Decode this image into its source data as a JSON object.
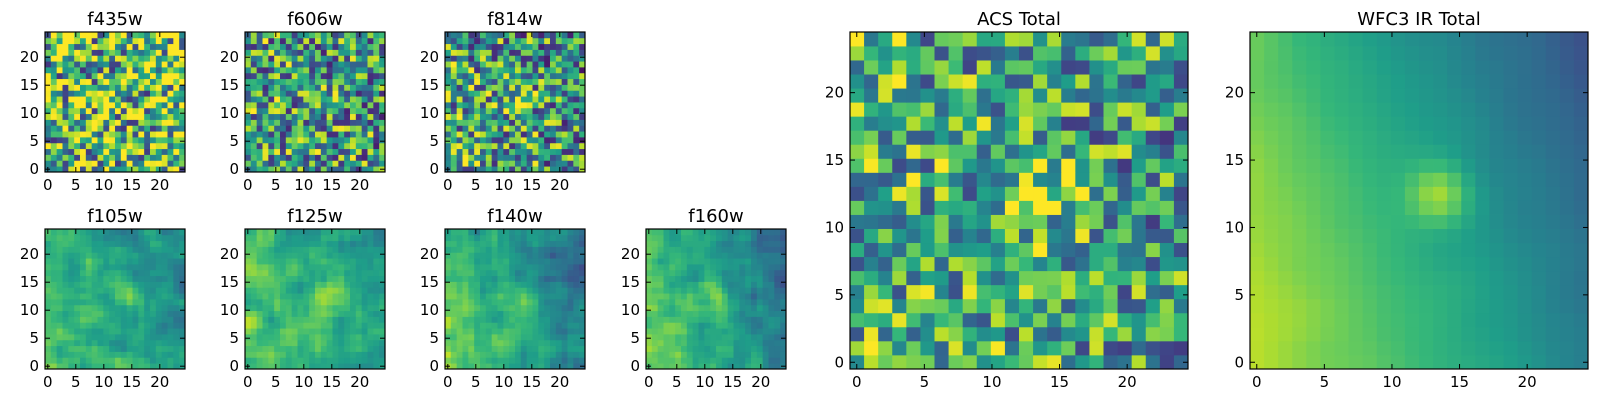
{
  "figure": {
    "description_colors": {
      "colormap": "viridis",
      "low": "#440154",
      "high": "#fde725",
      "frame": "#000000"
    }
  },
  "chart_data": [
    {
      "type": "heatmap",
      "title": "f435w",
      "xlim": [
        0,
        24
      ],
      "ylim": [
        0,
        24
      ],
      "xticks": [
        0,
        5,
        10,
        15,
        20
      ],
      "yticks": [
        0,
        5,
        10,
        15,
        20
      ],
      "grid_size": 24,
      "colormap": "viridis",
      "structure": "noise"
    },
    {
      "type": "heatmap",
      "title": "f606w",
      "xlim": [
        0,
        24
      ],
      "ylim": [
        0,
        24
      ],
      "xticks": [
        0,
        5,
        10,
        15,
        20
      ],
      "yticks": [
        0,
        5,
        10,
        15,
        20
      ],
      "grid_size": 24,
      "colormap": "viridis",
      "peak": [
        13,
        12
      ],
      "structure": "faint source"
    },
    {
      "type": "heatmap",
      "title": "f814w",
      "xlim": [
        0,
        24
      ],
      "ylim": [
        0,
        24
      ],
      "xticks": [
        0,
        5,
        10,
        15,
        20
      ],
      "yticks": [
        0,
        5,
        10,
        15,
        20
      ],
      "grid_size": 24,
      "colormap": "viridis",
      "peak": [
        13,
        12
      ],
      "structure": "source"
    },
    {
      "type": "heatmap",
      "title": "f105w",
      "xlim": [
        0,
        24
      ],
      "ylim": [
        0,
        24
      ],
      "xticks": [
        0,
        5,
        10,
        15,
        20
      ],
      "yticks": [
        0,
        5,
        10,
        15,
        20
      ],
      "grid_size": 24,
      "colormap": "viridis",
      "peak": [
        13,
        12
      ],
      "structure": "source"
    },
    {
      "type": "heatmap",
      "title": "f125w",
      "xlim": [
        0,
        24
      ],
      "ylim": [
        0,
        24
      ],
      "xticks": [
        0,
        5,
        10,
        15,
        20
      ],
      "yticks": [
        0,
        5,
        10,
        15,
        20
      ],
      "grid_size": 24,
      "colormap": "viridis",
      "peak": [
        13,
        12
      ],
      "structure": "source"
    },
    {
      "type": "heatmap",
      "title": "f140w",
      "xlim": [
        0,
        24
      ],
      "ylim": [
        0,
        24
      ],
      "xticks": [
        0,
        5,
        10,
        15,
        20
      ],
      "yticks": [
        0,
        5,
        10,
        15,
        20
      ],
      "grid_size": 24,
      "colormap": "viridis",
      "peak": [
        13,
        12
      ],
      "structure": "source + gradient"
    },
    {
      "type": "heatmap",
      "title": "f160w",
      "xlim": [
        0,
        24
      ],
      "ylim": [
        0,
        24
      ],
      "xticks": [
        0,
        5,
        10,
        15,
        20
      ],
      "yticks": [
        0,
        5,
        10,
        15,
        20
      ],
      "grid_size": 24,
      "colormap": "viridis",
      "peak": [
        12,
        12
      ],
      "structure": "source + gradient"
    },
    {
      "type": "heatmap",
      "title": "ACS Total",
      "xlim": [
        0,
        24
      ],
      "ylim": [
        0,
        24
      ],
      "xticks": [
        0,
        5,
        10,
        15,
        20
      ],
      "yticks": [
        0,
        5,
        10,
        15,
        20
      ],
      "grid_size": 24,
      "colormap": "viridis",
      "peak": [
        13,
        12
      ],
      "structure": "noise + source"
    },
    {
      "type": "heatmap",
      "title": "WFC3 IR Total",
      "xlim": [
        0,
        24
      ],
      "ylim": [
        0,
        24
      ],
      "xticks": [
        0,
        5,
        10,
        15,
        20
      ],
      "yticks": [
        0,
        5,
        10,
        15,
        20
      ],
      "grid_size": 24,
      "colormap": "viridis",
      "peak": [
        13,
        12
      ],
      "structure": "smooth source + gradient"
    }
  ]
}
